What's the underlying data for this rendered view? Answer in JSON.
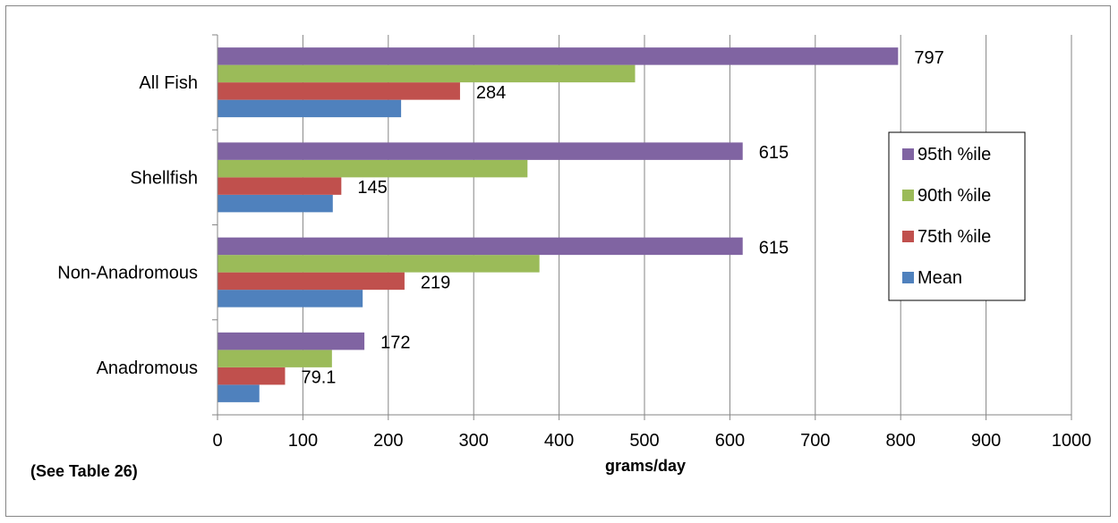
{
  "chart_data": {
    "type": "bar",
    "orientation": "horizontal",
    "categories": [
      "Anadromous",
      "Non-Anadromous",
      "Shellfish",
      "All Fish"
    ],
    "series": [
      {
        "name": "Mean",
        "color": "#4F81BD",
        "values": [
          49,
          170,
          135,
          215
        ]
      },
      {
        "name": "75th %ile",
        "color": "#C0504D",
        "values": [
          79.1,
          219,
          145,
          284
        ]
      },
      {
        "name": "90th %ile",
        "color": "#9BBB59",
        "values": [
          134,
          377,
          363,
          489
        ]
      },
      {
        "name": "95th %ile",
        "color": "#8064A2",
        "values": [
          172,
          615,
          615,
          797
        ]
      }
    ],
    "data_labels": [
      {
        "series": "75th %ile",
        "category": "Anadromous",
        "text": "79.1"
      },
      {
        "series": "95th %ile",
        "category": "Anadromous",
        "text": "172"
      },
      {
        "series": "75th %ile",
        "category": "Non-Anadromous",
        "text": "219"
      },
      {
        "series": "95th %ile",
        "category": "Non-Anadromous",
        "text": "615"
      },
      {
        "series": "75th %ile",
        "category": "Shellfish",
        "text": "145"
      },
      {
        "series": "95th %ile",
        "category": "Shellfish",
        "text": "615"
      },
      {
        "series": "75th %ile",
        "category": "All Fish",
        "text": "284"
      },
      {
        "series": "95th %ile",
        "category": "All Fish",
        "text": "797"
      }
    ],
    "xlabel": "grams/day",
    "xlim": [
      0,
      1000
    ],
    "xticks": [
      "0",
      "100",
      "200",
      "300",
      "400",
      "500",
      "600",
      "700",
      "800",
      "900",
      "1000"
    ],
    "grid": "vertical",
    "legend_position": "right",
    "legend_order": [
      "95th %ile",
      "90th %ile",
      "75th %ile",
      "Mean"
    ],
    "note": "(See Table 26)"
  }
}
